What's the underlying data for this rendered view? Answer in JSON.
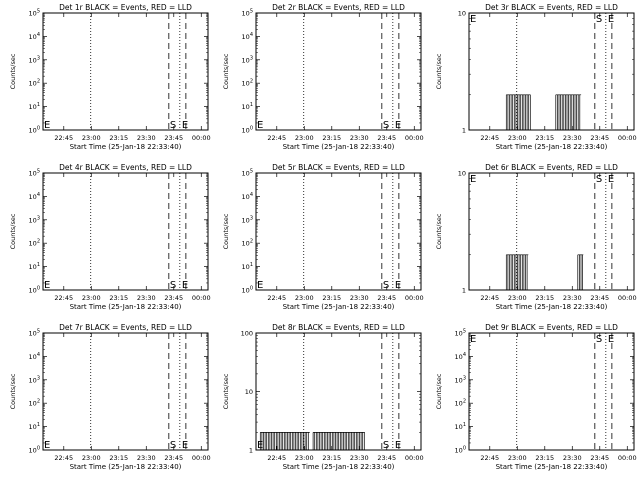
{
  "chart_data": [
    {
      "type": "line",
      "title": "Det 1r BLACK = Events, RED = LLD",
      "xlabel": "Start Time (25-Jan-18 22:33:40)",
      "ylabel": "Counts/sec",
      "yscale": "log",
      "ylim": [
        1,
        100000
      ],
      "ytick_labels": [
        "10^0",
        "10^1",
        "10^2",
        "10^3",
        "10^4",
        "10^5"
      ],
      "xtick_labels": [
        "22:45",
        "23:00",
        "23:15",
        "23:30",
        "23:45",
        "00:00"
      ],
      "markers": [
        "E",
        "S",
        "E"
      ],
      "series": []
    },
    {
      "type": "line",
      "title": "Det 2r BLACK = Events, RED = LLD",
      "xlabel": "Start Time (25-Jan-18 22:33:40)",
      "ylabel": "Counts/sec",
      "yscale": "log",
      "ylim": [
        1,
        100000
      ],
      "ytick_labels": [
        "10^0",
        "10^1",
        "10^2",
        "10^3",
        "10^4",
        "10^5"
      ],
      "xtick_labels": [
        "22:45",
        "23:00",
        "23:15",
        "23:30",
        "23:45",
        "00:00"
      ],
      "markers": [
        "E",
        "S",
        "E"
      ],
      "series": []
    },
    {
      "type": "line",
      "title": "Det 3r BLACK = Events, RED = LLD",
      "xlabel": "Start Time (25-Jan-18 22:33:40)",
      "ylabel": "Counts/sec",
      "yscale": "log",
      "ylim": [
        1,
        10
      ],
      "ytick_labels": [
        "1",
        "10"
      ],
      "xtick_labels": [
        "22:45",
        "23:00",
        "23:15",
        "23:30",
        "23:45",
        "00:00"
      ],
      "markers": [
        "E",
        "S",
        "E"
      ],
      "series": [
        {
          "segments": [
            [
              22.9,
              23.12
            ],
            [
              23.35,
              23.58
            ]
          ],
          "value": 2
        }
      ]
    },
    {
      "type": "line",
      "title": "Det 4r BLACK = Events, RED = LLD",
      "xlabel": "Start Time (25-Jan-18 22:33:40)",
      "ylabel": "Counts/sec",
      "yscale": "log",
      "ylim": [
        1,
        100000
      ],
      "ytick_labels": [
        "10^0",
        "10^1",
        "10^2",
        "10^3",
        "10^4",
        "10^5"
      ],
      "xtick_labels": [
        "22:45",
        "23:00",
        "23:15",
        "23:30",
        "23:45",
        "00:00"
      ],
      "markers": [
        "E",
        "S",
        "E"
      ],
      "series": []
    },
    {
      "type": "line",
      "title": "Det 5r BLACK = Events, RED = LLD",
      "xlabel": "Start Time (25-Jan-18 22:33:40)",
      "ylabel": "Counts/sec",
      "yscale": "log",
      "ylim": [
        1,
        100000
      ],
      "ytick_labels": [
        "10^0",
        "10^1",
        "10^2",
        "10^3",
        "10^4",
        "10^5"
      ],
      "xtick_labels": [
        "22:45",
        "23:00",
        "23:15",
        "23:30",
        "23:45",
        "00:00"
      ],
      "markers": [
        "E",
        "S",
        "E"
      ],
      "series": []
    },
    {
      "type": "line",
      "title": "Det 6r BLACK = Events, RED = LLD",
      "xlabel": "Start Time (25-Jan-18 22:33:40)",
      "ylabel": "Counts/sec",
      "yscale": "log",
      "ylim": [
        1,
        10
      ],
      "ytick_labels": [
        "1",
        "10"
      ],
      "xtick_labels": [
        "22:45",
        "23:00",
        "23:15",
        "23:30",
        "23:45",
        "00:00"
      ],
      "markers": [
        "E",
        "S",
        "E"
      ],
      "series": [
        {
          "segments": [
            [
              22.9,
              23.1
            ],
            [
              23.55,
              23.6
            ]
          ],
          "value": 2
        }
      ]
    },
    {
      "type": "line",
      "title": "Det 7r BLACK = Events, RED = LLD",
      "xlabel": "Start Time (25-Jan-18 22:33:40)",
      "ylabel": "Counts/sec",
      "yscale": "log",
      "ylim": [
        1,
        100000
      ],
      "ytick_labels": [
        "10^0",
        "10^1",
        "10^2",
        "10^3",
        "10^4",
        "10^5"
      ],
      "xtick_labels": [
        "22:45",
        "23:00",
        "23:15",
        "23:30",
        "23:45",
        "00:00"
      ],
      "markers": [
        "E",
        "S",
        "E"
      ],
      "series": []
    },
    {
      "type": "line",
      "title": "Det 8r BLACK = Events, RED = LLD",
      "xlabel": "Start Time (25-Jan-18 22:33:40)",
      "ylabel": "Counts/sec",
      "yscale": "log",
      "ylim": [
        1,
        100
      ],
      "ytick_labels": [
        "1",
        "10",
        "100"
      ],
      "xtick_labels": [
        "22:45",
        "23:00",
        "23:15",
        "23:30",
        "23:45",
        "00:00"
      ],
      "markers": [
        "E",
        "S",
        "E"
      ],
      "series": [
        {
          "segments": [
            [
              22.6,
              23.05
            ],
            [
              23.08,
              23.55
            ]
          ],
          "value": 2
        }
      ]
    },
    {
      "type": "line",
      "title": "Det 9r BLACK = Events, RED = LLD",
      "xlabel": "Start Time (25-Jan-18 22:33:40)",
      "ylabel": "Counts/sec",
      "yscale": "log",
      "ylim": [
        1,
        100000
      ],
      "ytick_labels": [
        "10^0",
        "10^1",
        "10^2",
        "10^3",
        "10^4",
        "10^5"
      ],
      "xtick_labels": [
        "22:45",
        "23:00",
        "23:15",
        "23:30",
        "23:45",
        "00:00"
      ],
      "markers": [
        "E",
        "S",
        "E"
      ],
      "series": []
    }
  ]
}
